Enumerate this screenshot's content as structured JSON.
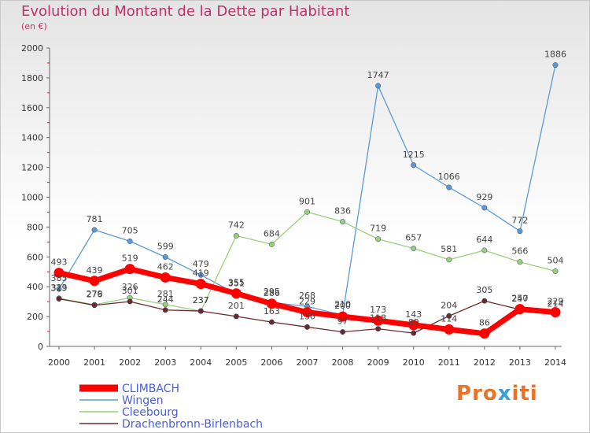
{
  "title": "Evolution du Montant de la Dette par Habitant",
  "subtitle": "(en €)",
  "logo": {
    "text": "Proxiti",
    "letter_colors": [
      "#e8742a",
      "#e8742a",
      "#e8742a",
      "#3aa0d8",
      "#e8742a",
      "#e8742a",
      "#e8742a"
    ]
  },
  "chart_data": {
    "type": "line",
    "x": [
      "2000",
      "2001",
      "2002",
      "2003",
      "2004",
      "2005",
      "2006",
      "2007",
      "2008",
      "2009",
      "2010",
      "2011",
      "2012",
      "2013",
      "2014"
    ],
    "ylim": [
      0,
      2000
    ],
    "yticks": [
      0,
      200,
      400,
      600,
      800,
      1000,
      1200,
      1400,
      1600,
      1800,
      2000
    ],
    "grid": false,
    "legend_position": "bottom-left",
    "series": [
      {
        "name": "Wingen",
        "color": "#5b9bd5",
        "values": [
          385,
          781,
          705,
          599,
          479,
          351,
          295,
          268,
          210,
          1747,
          1215,
          1066,
          929,
          772,
          1886
        ]
      },
      {
        "name": "Cleebourg",
        "color": "#99d17a",
        "values": [
          323,
          279,
          326,
          281,
          237,
          742,
          684,
          901,
          836,
          719,
          657,
          581,
          644,
          566,
          504
        ]
      },
      {
        "name": "Drachenbronn-Birlenbach",
        "color": "#6b2a2a",
        "values": [
          319,
          276,
          301,
          244,
          237,
          201,
          163,
          130,
          97,
          118,
          89,
          204,
          305,
          247,
          214
        ]
      },
      {
        "name": "CLIMBACH",
        "color": "#ff0000",
        "values": [
          493,
          439,
          519,
          462,
          419,
          355,
          286,
          229,
          200,
          173,
          143,
          114,
          86,
          250,
          229
        ]
      }
    ]
  }
}
